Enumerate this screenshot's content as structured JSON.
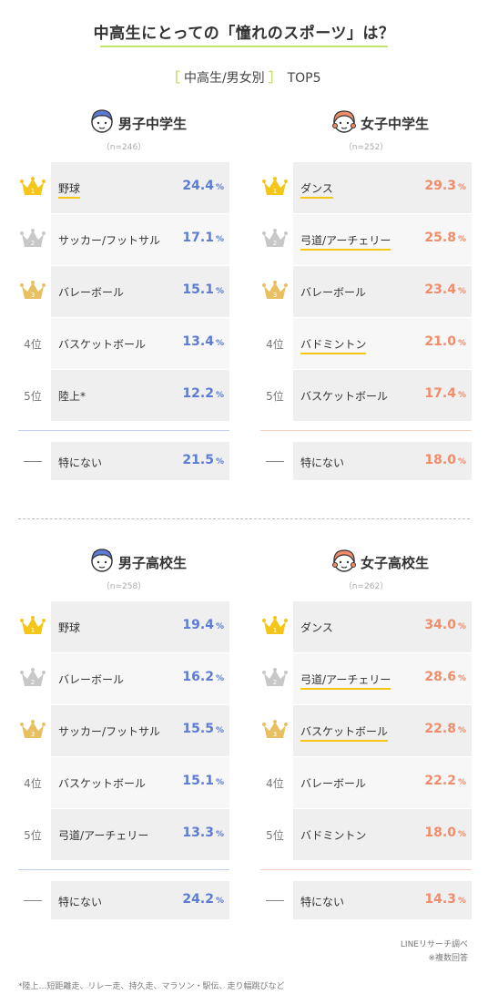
{
  "title": "中高生にとっての「憧れのスポーツ」は？",
  "subtitle": {
    "open": "［",
    "text": "中高生/男女別",
    "close": "］",
    "top": "TOP5"
  },
  "colors": {
    "boys": "#5b7bd5",
    "girls": "#f08c6a",
    "gold": "#f5c518",
    "silver": "#c8c8c8",
    "bronze": "#e8c062",
    "accent": "#c3e26f"
  },
  "other_label": "—",
  "chart_data": [
    {
      "type": "table",
      "title": "男子中学生",
      "n": "（n=246）",
      "gender": "boy",
      "rows": [
        {
          "rank": "1",
          "sport": "野球",
          "value": "24.4",
          "underline": true
        },
        {
          "rank": "2",
          "sport": "サッカー/フットサル",
          "value": "17.1",
          "underline": false
        },
        {
          "rank": "3",
          "sport": "バレーボール",
          "value": "15.1",
          "underline": false
        },
        {
          "rank": "4位",
          "sport": "バスケットボール",
          "value": "13.4",
          "underline": false
        },
        {
          "rank": "5位",
          "sport": "陸上*",
          "value": "12.2",
          "underline": false
        }
      ],
      "other": {
        "sport": "特にない",
        "value": "21.5"
      }
    },
    {
      "type": "table",
      "title": "女子中学生",
      "n": "（n=252）",
      "gender": "girl",
      "rows": [
        {
          "rank": "1",
          "sport": "ダンス",
          "value": "29.3",
          "underline": true
        },
        {
          "rank": "2",
          "sport": "弓道/アーチェリー",
          "value": "25.8",
          "underline": true
        },
        {
          "rank": "3",
          "sport": "バレーボール",
          "value": "23.4",
          "underline": false
        },
        {
          "rank": "4位",
          "sport": "バドミントン",
          "value": "21.0",
          "underline": true
        },
        {
          "rank": "5位",
          "sport": "バスケットボール",
          "value": "17.4",
          "underline": false
        }
      ],
      "other": {
        "sport": "特にない",
        "value": "18.0"
      }
    },
    {
      "type": "table",
      "title": "男子高校生",
      "n": "（n=258）",
      "gender": "boy",
      "rows": [
        {
          "rank": "1",
          "sport": "野球",
          "value": "19.4",
          "underline": false
        },
        {
          "rank": "2",
          "sport": "バレーボール",
          "value": "16.2",
          "underline": false
        },
        {
          "rank": "3",
          "sport": "サッカー/フットサル",
          "value": "15.5",
          "underline": false
        },
        {
          "rank": "4位",
          "sport": "バスケットボール",
          "value": "15.1",
          "underline": false
        },
        {
          "rank": "5位",
          "sport": "弓道/アーチェリー",
          "value": "13.3",
          "underline": false
        }
      ],
      "other": {
        "sport": "特にない",
        "value": "24.2"
      }
    },
    {
      "type": "table",
      "title": "女子高校生",
      "n": "（n=262）",
      "gender": "girl",
      "rows": [
        {
          "rank": "1",
          "sport": "ダンス",
          "value": "34.0",
          "underline": false
        },
        {
          "rank": "2",
          "sport": "弓道/アーチェリー",
          "value": "28.6",
          "underline": true
        },
        {
          "rank": "3",
          "sport": "バスケットボール",
          "value": "22.8",
          "underline": true
        },
        {
          "rank": "4位",
          "sport": "バレーボール",
          "value": "22.2",
          "underline": false
        },
        {
          "rank": "5位",
          "sport": "バドミントン",
          "value": "18.0",
          "underline": false
        }
      ],
      "other": {
        "sport": "特にない",
        "value": "14.3"
      }
    }
  ],
  "percent_sign": "%",
  "source": "LINEリサーチ調べ",
  "source_note": "※複数回答",
  "footnote": "*陸上…短距離走、リレー走、持久走、マラソン・駅伝、走り幅跳びなど"
}
